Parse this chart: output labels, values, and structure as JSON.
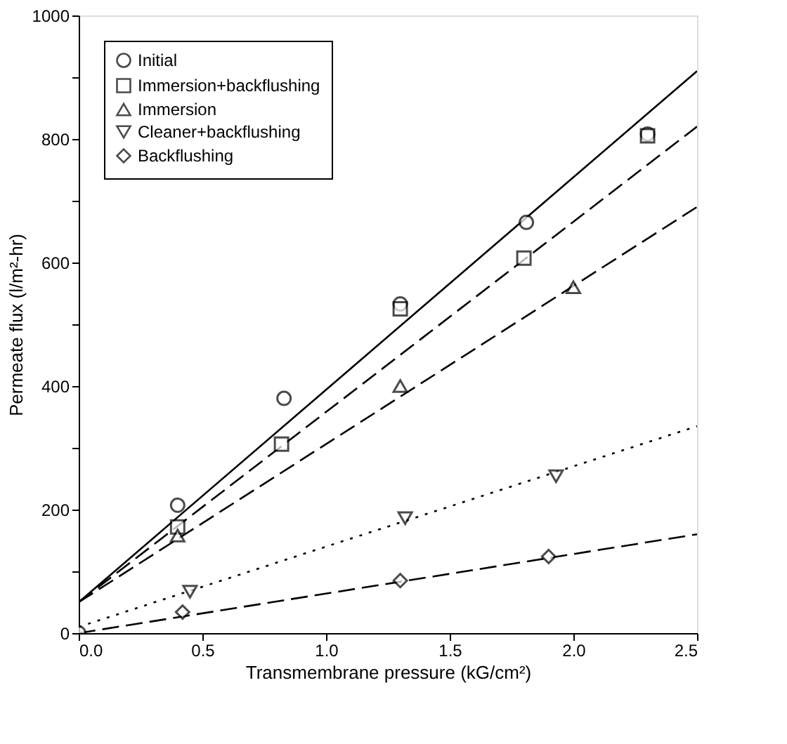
{
  "chart_data": {
    "type": "scatter",
    "xlabel": "Transmembrane pressure (kG/cm²)",
    "ylabel": "Permeate flux (l/m²-hr)",
    "xlim": [
      0,
      2.5
    ],
    "ylim": [
      0,
      1000
    ],
    "xticks": [
      {
        "value": 0,
        "label": "0.0"
      },
      0.5,
      {
        "value": 1,
        "label": "1.0"
      },
      1.5,
      {
        "value": 2,
        "label": "2.0"
      },
      2.5
    ],
    "yticks": [
      0,
      {
        "value": 100,
        "label": null
      },
      200,
      {
        "value": 300,
        "label": null
      },
      400,
      {
        "value": 500,
        "label": null
      },
      600,
      {
        "value": 700,
        "label": null
      },
      800,
      {
        "value": 900,
        "label": null
      },
      1000
    ],
    "grid": false,
    "legend": "top left",
    "series": [
      {
        "name": "Initial",
        "type": "scatter",
        "marker": "circle",
        "color": "#000000",
        "x": [
          0,
          0.4,
          0.83,
          1.3,
          1.81,
          2.3
        ],
        "values": [
          0,
          207,
          380,
          533,
          665,
          808
        ]
      },
      {
        "name": "Immersion+backflushing",
        "type": "scatter",
        "marker": "square",
        "color": "#000000",
        "x": [
          0.4,
          0.82,
          1.3,
          1.8,
          2.3
        ],
        "values": [
          172,
          306,
          525,
          607,
          805
        ]
      },
      {
        "name": "Immersion",
        "type": "scatter",
        "marker": "triangle",
        "color": "#000000",
        "x": [
          0.4,
          1.3,
          2.0
        ],
        "values": [
          158,
          400,
          560
        ]
      },
      {
        "name": "Cleaner+backflushing",
        "type": "scatter",
        "marker": "triangle-down",
        "color": "#000000",
        "x": [
          0.45,
          1.32,
          1.93
        ],
        "values": [
          67,
          186,
          254
        ]
      },
      {
        "name": "Backflushing",
        "type": "scatter",
        "marker": "diamond",
        "color": "#000000",
        "x": [
          0.42,
          1.3,
          1.9
        ],
        "values": [
          34,
          85,
          124
        ]
      },
      {
        "type": "line",
        "line_style": "solid",
        "color": "#000000",
        "x": [
          0,
          2.5
        ],
        "values": [
          50,
          910
        ]
      },
      {
        "type": "line",
        "line_style": "dashed",
        "color": "#000000",
        "x": [
          0,
          2.5
        ],
        "values": [
          50,
          820
        ]
      },
      {
        "type": "line",
        "line_style": "dashed",
        "color": "#000000",
        "x": [
          0,
          2.5
        ],
        "values": [
          50,
          690
        ]
      },
      {
        "type": "line",
        "line_style": "dotted",
        "color": "#000000",
        "x": [
          0,
          2.5
        ],
        "values": [
          10,
          335
        ]
      },
      {
        "type": "line",
        "line_style": "dashed",
        "color": "#000000",
        "x": [
          0,
          2.5
        ],
        "values": [
          0,
          160
        ]
      }
    ]
  }
}
